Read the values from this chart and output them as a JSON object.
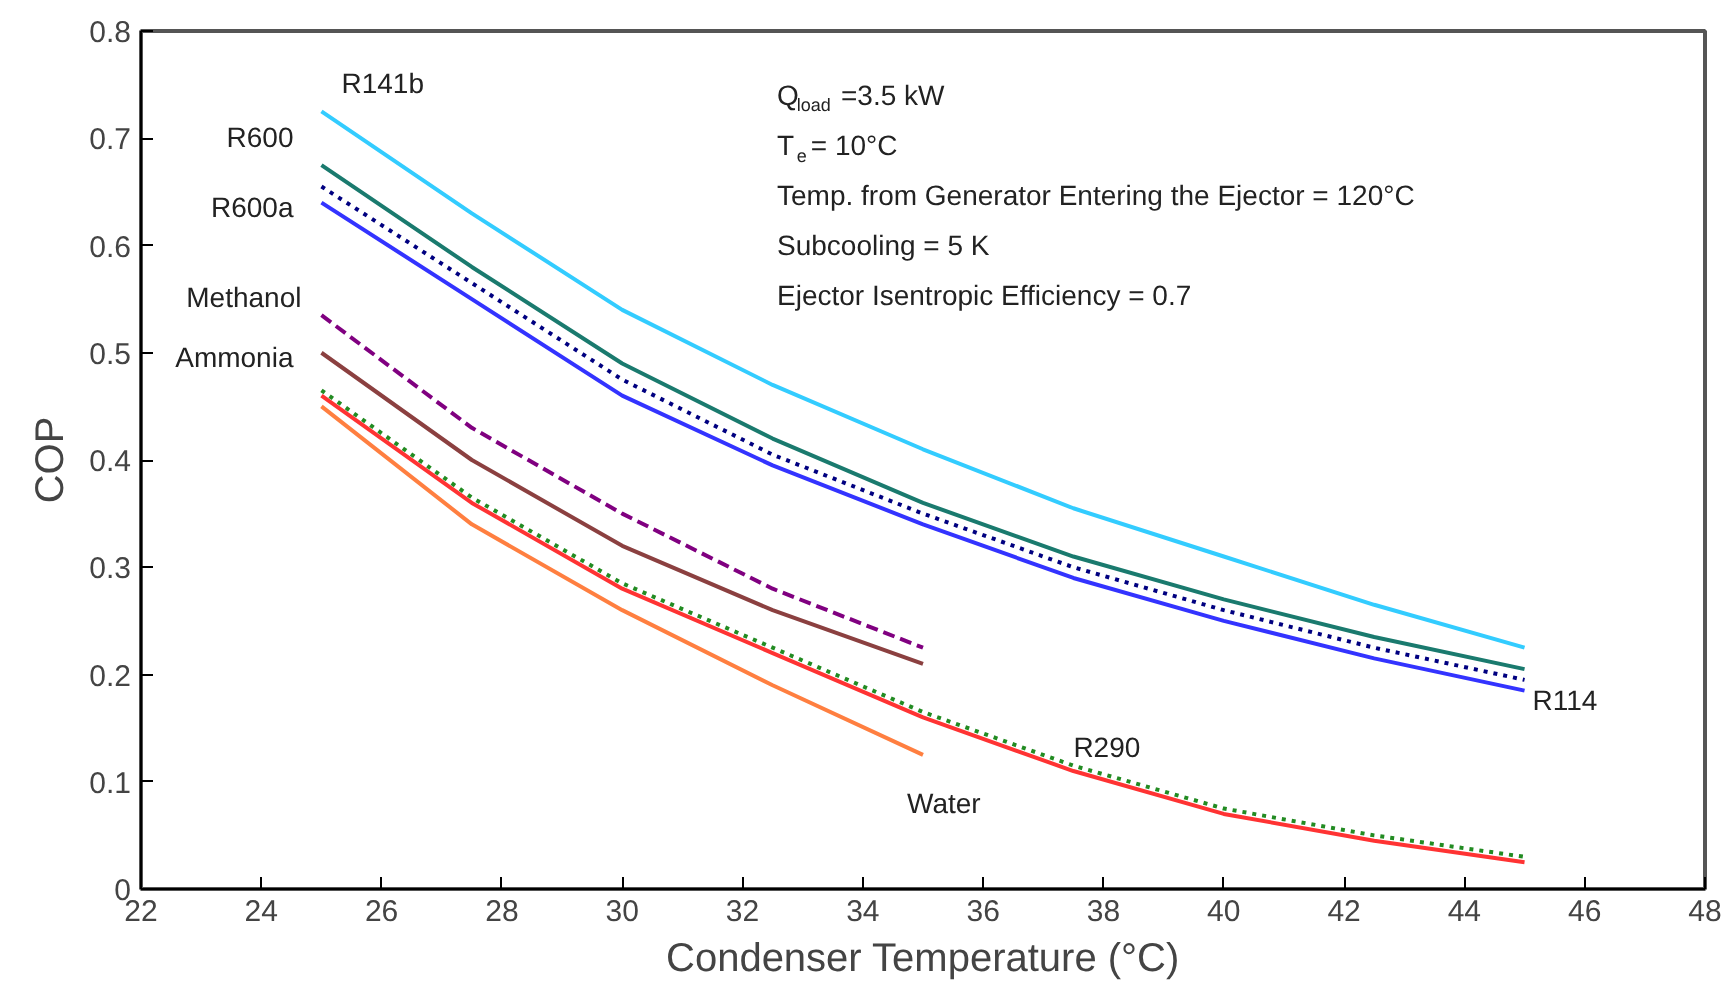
{
  "chart_data": {
    "type": "line",
    "xlabel": "Condenser Temperature (°C)",
    "ylabel": "COP",
    "x": [
      25,
      27.5,
      30,
      32.5,
      35,
      37.5,
      40,
      42.5,
      45
    ],
    "series": [
      {
        "name": "R141b",
        "color": "#33ccff",
        "values": [
          0.725,
          0.63,
          0.54,
          0.47,
          0.41,
          0.355,
          0.31,
          0.265,
          0.225
        ],
        "line_style": "solid"
      },
      {
        "name": "R600",
        "color": "#1a7a6e",
        "values": [
          0.675,
          0.58,
          0.49,
          0.42,
          0.36,
          0.31,
          0.27,
          0.235,
          0.205
        ],
        "line_style": "solid"
      },
      {
        "name": "R114",
        "color": "#000080",
        "values": [
          0.655,
          0.565,
          0.475,
          0.405,
          0.35,
          0.3,
          0.26,
          0.225,
          0.195
        ],
        "line_style": "dotted"
      },
      {
        "name": "R600a",
        "color": "#3333ff",
        "values": [
          0.64,
          0.55,
          0.46,
          0.395,
          0.34,
          0.29,
          0.25,
          0.215,
          0.185
        ],
        "line_style": "solid"
      },
      {
        "name": "Methanol",
        "color": "#800080",
        "x": [
          25,
          27.5,
          30,
          32.5,
          35
        ],
        "values": [
          0.535,
          0.43,
          0.35,
          0.28,
          0.225
        ],
        "line_style": "dashed"
      },
      {
        "name": "Ammonia",
        "color": "#8b4040",
        "x": [
          25,
          27.5,
          30,
          32.5,
          35
        ],
        "values": [
          0.5,
          0.4,
          0.32,
          0.26,
          0.21
        ],
        "line_style": "solid"
      },
      {
        "name": "R290",
        "color": "#ff3333",
        "values": [
          0.46,
          0.36,
          0.28,
          0.22,
          0.16,
          0.11,
          0.07,
          0.045,
          0.025
        ],
        "line_style": "solid"
      },
      {
        "color": "#228b22",
        "values": [
          0.465,
          0.365,
          0.285,
          0.225,
          0.165,
          0.115,
          0.075,
          0.05,
          0.03
        ],
        "line_style": "dotted"
      },
      {
        "name": "Water",
        "color": "#ff7f40",
        "x": [
          25,
          27.5,
          30,
          32.5,
          35
        ],
        "values": [
          0.45,
          0.34,
          0.26,
          0.19,
          0.125
        ],
        "line_style": "solid"
      }
    ],
    "xlim": [
      22,
      48
    ],
    "xticks": [
      22,
      24,
      26,
      28,
      30,
      32,
      34,
      36,
      38,
      40,
      42,
      44,
      46,
      48
    ],
    "ylim": [
      0,
      0.8
    ],
    "yticks": [
      0,
      0.1,
      0.2,
      0.3,
      0.4,
      0.5,
      0.6,
      0.7,
      0.8
    ],
    "grid": false,
    "legend": false,
    "marker": "none",
    "annotations": [
      "Q$_{load}$=3.5 kW",
      "T$_{e}$= 10°C",
      "Temp. from Generator Entering the Ejector = 120°C",
      "Subcooling = 5 K",
      "Ejector Isentropic Efficiency = 0.7"
    ]
  }
}
